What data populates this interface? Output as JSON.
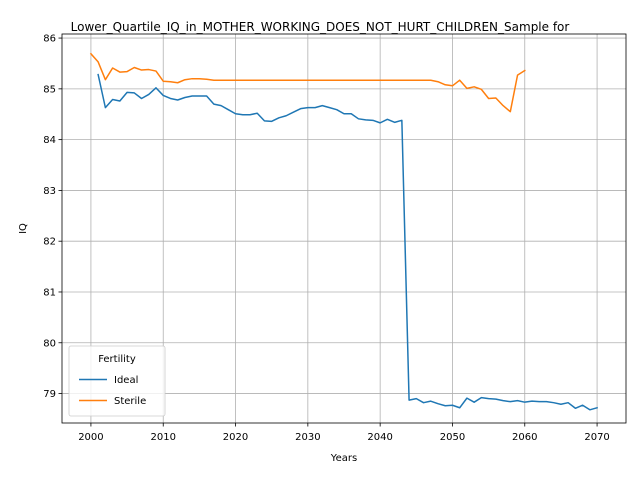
{
  "chart_data": {
    "type": "line",
    "title": "Lower_Quartile_IQ_in_MOTHER_WORKING_DOES_NOT_HURT_CHILDREN_Sample for",
    "xlabel": "Years",
    "ylabel": "IQ",
    "xlim": [
      1996,
      2074
    ],
    "ylim": [
      78.42,
      86.08
    ],
    "xticks": [
      2000,
      2010,
      2020,
      2030,
      2040,
      2050,
      2060,
      2070
    ],
    "yticks": [
      79,
      80,
      81,
      82,
      83,
      84,
      85,
      86
    ],
    "grid": true,
    "legend": {
      "title": "Fertility",
      "placement": "lower-left"
    },
    "series": [
      {
        "name": "Ideal",
        "color": "#1f77b4",
        "x": [
          2001,
          2002,
          2003,
          2004,
          2005,
          2006,
          2007,
          2008,
          2009,
          2010,
          2011,
          2012,
          2013,
          2014,
          2015,
          2016,
          2017,
          2018,
          2019,
          2020,
          2021,
          2022,
          2023,
          2024,
          2025,
          2026,
          2027,
          2028,
          2029,
          2030,
          2031,
          2032,
          2033,
          2034,
          2035,
          2036,
          2037,
          2038,
          2039,
          2040,
          2041,
          2042,
          2043,
          2044,
          2045,
          2046,
          2047,
          2048,
          2049,
          2050,
          2051,
          2052,
          2053,
          2054,
          2055,
          2056,
          2057,
          2058,
          2059,
          2060,
          2061,
          2062,
          2063,
          2064,
          2065,
          2066,
          2067,
          2068,
          2069,
          2070
        ],
        "values": [
          85.28,
          84.63,
          84.79,
          84.76,
          84.93,
          84.92,
          84.81,
          84.89,
          85.02,
          84.87,
          84.81,
          84.78,
          84.83,
          84.86,
          84.86,
          84.86,
          84.7,
          84.67,
          84.59,
          84.51,
          84.49,
          84.49,
          84.52,
          84.37,
          84.36,
          84.43,
          84.47,
          84.54,
          84.61,
          84.63,
          84.63,
          84.67,
          84.63,
          84.59,
          84.51,
          84.51,
          84.41,
          84.39,
          84.38,
          84.33,
          84.4,
          84.34,
          84.38,
          78.87,
          78.9,
          78.82,
          78.85,
          78.8,
          78.76,
          78.77,
          78.72,
          78.91,
          78.83,
          78.92,
          78.9,
          78.89,
          78.86,
          78.84,
          78.86,
          78.83,
          78.85,
          78.84,
          78.84,
          78.82,
          78.79,
          78.82,
          78.71,
          78.77,
          78.68,
          78.72
        ]
      },
      {
        "name": "Sterile",
        "color": "#ff7f0e",
        "x": [
          2000,
          2001,
          2002,
          2003,
          2004,
          2005,
          2006,
          2007,
          2008,
          2009,
          2010,
          2011,
          2012,
          2013,
          2014,
          2015,
          2016,
          2017,
          2018,
          2019,
          2020,
          2021,
          2022,
          2023,
          2024,
          2025,
          2026,
          2027,
          2028,
          2029,
          2030,
          2031,
          2032,
          2033,
          2034,
          2035,
          2036,
          2037,
          2038,
          2039,
          2040,
          2041,
          2042,
          2043,
          2044,
          2045,
          2046,
          2047,
          2048,
          2049,
          2050,
          2051,
          2052,
          2053,
          2054,
          2055,
          2056,
          2057,
          2058,
          2059,
          2060
        ],
        "values": [
          85.69,
          85.53,
          85.18,
          85.41,
          85.33,
          85.34,
          85.42,
          85.37,
          85.38,
          85.35,
          85.15,
          85.14,
          85.12,
          85.18,
          85.2,
          85.2,
          85.19,
          85.17,
          85.17,
          85.17,
          85.17,
          85.17,
          85.17,
          85.17,
          85.17,
          85.17,
          85.17,
          85.17,
          85.17,
          85.17,
          85.17,
          85.17,
          85.17,
          85.17,
          85.17,
          85.17,
          85.17,
          85.17,
          85.17,
          85.17,
          85.17,
          85.17,
          85.17,
          85.17,
          85.17,
          85.17,
          85.17,
          85.17,
          85.14,
          85.08,
          85.06,
          85.17,
          85.01,
          85.04,
          84.99,
          84.81,
          84.82,
          84.67,
          84.55,
          85.27,
          85.36
        ]
      }
    ]
  }
}
